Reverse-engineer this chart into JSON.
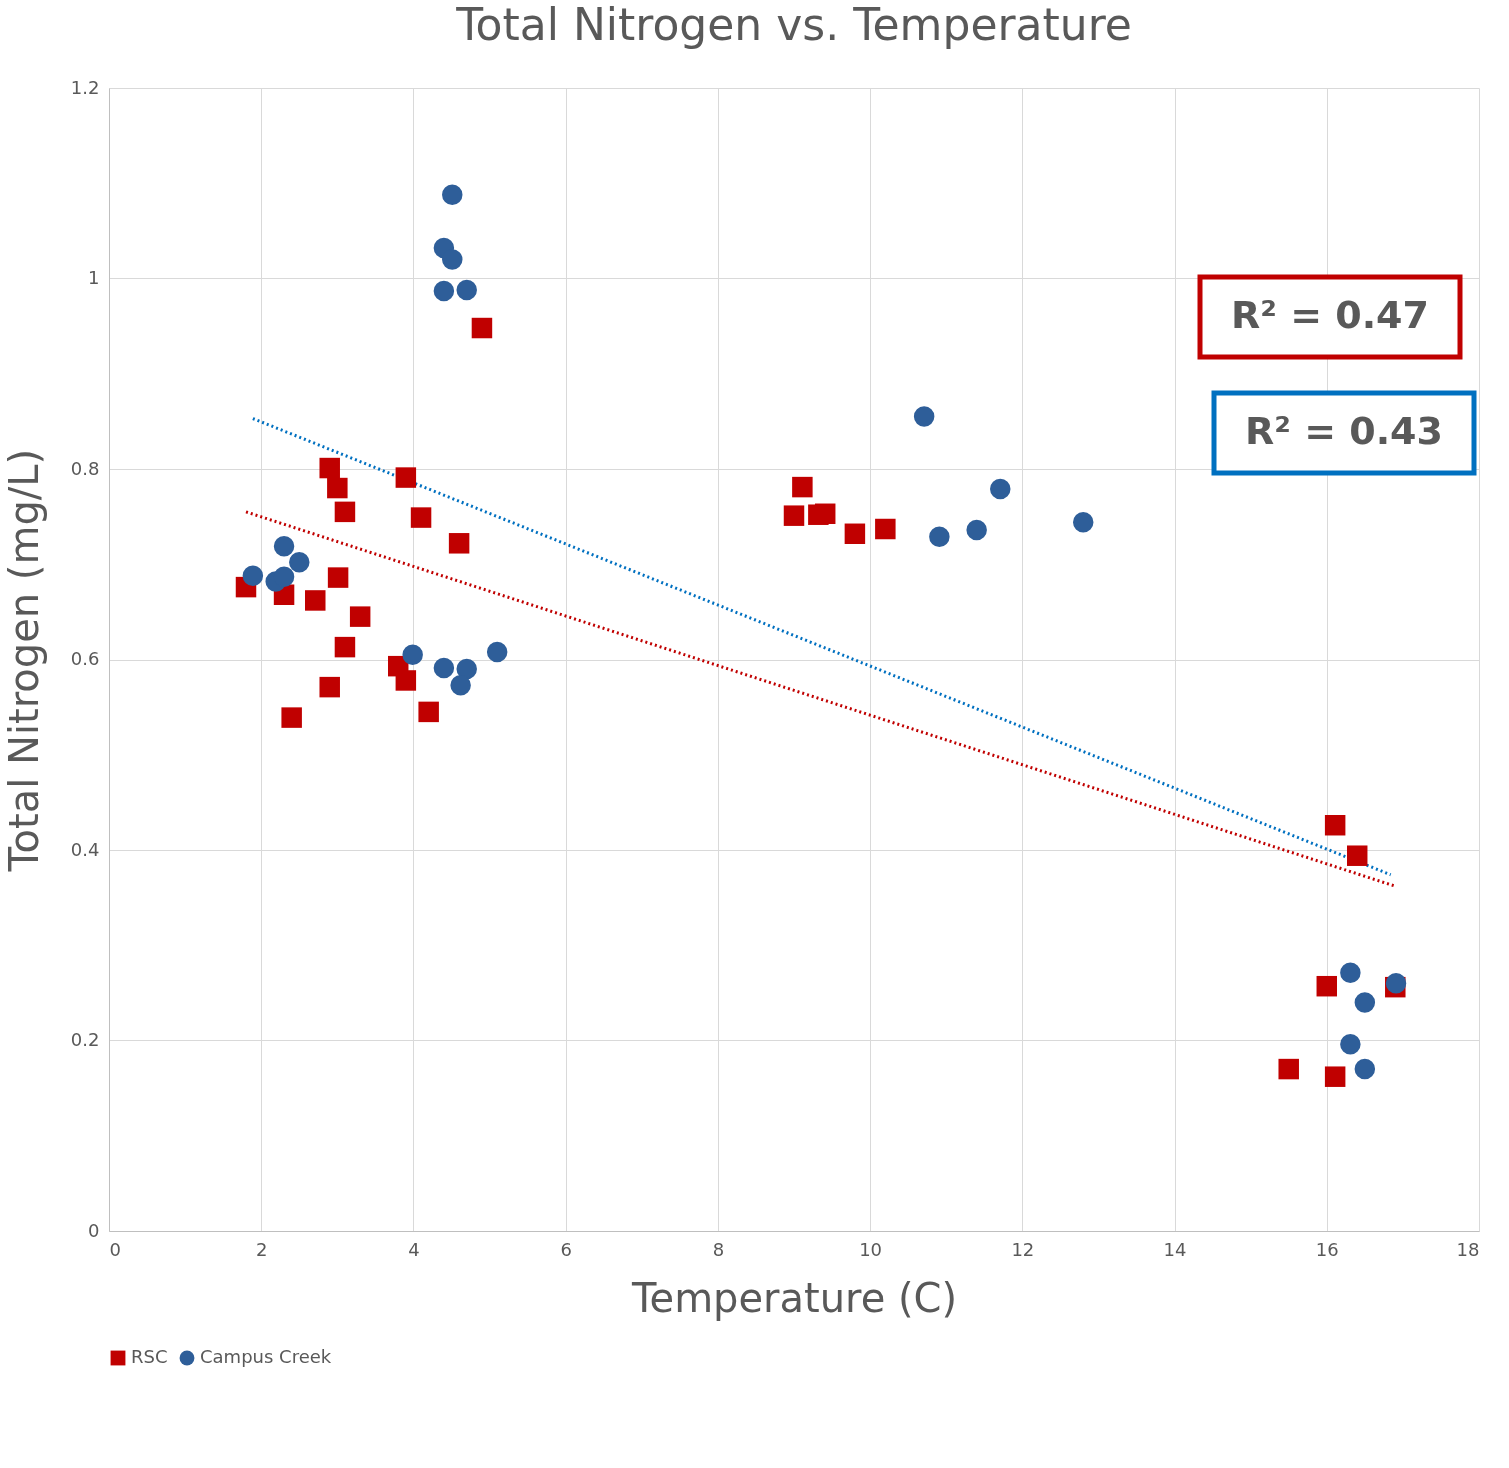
{
  "chart_data": {
    "type": "scatter",
    "title": "Total Nitrogen vs. Temperature",
    "xlabel": "Temperature (C)",
    "ylabel": "Total Nitrogen (mg/L)",
    "xlim": [
      0,
      18
    ],
    "xticks": [
      0,
      2,
      4,
      6,
      8,
      10,
      12,
      14,
      16,
      18
    ],
    "ylim": [
      0,
      1.2
    ],
    "yticks": [
      0,
      0.2,
      0.4,
      0.6,
      0.8,
      1,
      1.2
    ],
    "grid": true,
    "legend": "bottom",
    "series": [
      {
        "name": "RSC",
        "color": "#c00000",
        "marker": "square",
        "x": [
          1.8,
          2.3,
          2.4,
          2.71,
          2.9,
          2.9,
          3.0,
          3.01,
          3.1,
          3.1,
          3.3,
          3.8,
          3.9,
          3.9,
          4.1,
          4.2,
          4.6,
          4.9,
          9.0,
          9.11,
          9.32,
          9.41,
          9.8,
          10.2,
          15.5,
          16.0,
          16.11,
          16.11,
          16.4,
          16.9
        ],
        "values": [
          0.676,
          0.668,
          0.539,
          0.662,
          0.801,
          0.571,
          0.78,
          0.686,
          0.755,
          0.613,
          0.645,
          0.593,
          0.791,
          0.578,
          0.749,
          0.545,
          0.722,
          0.948,
          0.751,
          0.781,
          0.752,
          0.753,
          0.732,
          0.737,
          0.17,
          0.257,
          0.426,
          0.162,
          0.394,
          0.256
        ]
      },
      {
        "name": "Campus Creek",
        "color": "#2e5e99",
        "marker": "circle",
        "x": [
          1.89,
          2.19,
          2.3,
          2.3,
          2.5,
          3.99,
          4.4,
          4.4,
          4.51,
          4.51,
          4.7,
          4.4,
          4.7,
          4.62,
          5.1,
          10.71,
          10.91,
          11.4,
          11.71,
          12.8,
          16.31,
          16.5,
          16.91,
          16.31,
          16.5
        ],
        "values": [
          0.688,
          0.682,
          0.687,
          0.719,
          0.702,
          0.605,
          1.032,
          0.987,
          1.088,
          1.02,
          0.988,
          0.591,
          0.59,
          0.573,
          0.608,
          0.855,
          0.729,
          0.736,
          0.779,
          0.744,
          0.271,
          0.24,
          0.26,
          0.196,
          0.17
        ]
      },
      {
        "type": "line",
        "color": "#c00000",
        "line_style": "dotted",
        "x": [
          1.8,
          16.9
        ],
        "values": [
          0.755,
          0.362
        ]
      },
      {
        "type": "line",
        "color": "#0070c0",
        "line_style": "dotted",
        "x": [
          1.89,
          16.84
        ],
        "values": [
          0.853,
          0.374
        ]
      }
    ],
    "annotations": [
      "R² = 0.47",
      "R² = 0.43"
    ]
  }
}
